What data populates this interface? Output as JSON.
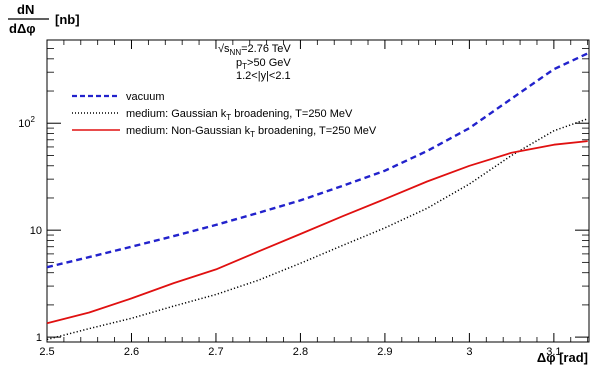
{
  "chart_data": {
    "type": "line",
    "ylabel_num": "dN",
    "ylabel_den": "dΔφ",
    "ylabel_unit": "[nb]",
    "xlabel": "Δφ [rad]",
    "xlim": [
      2.5,
      3.14159
    ],
    "ylim": [
      0.9,
      600
    ],
    "yscale": "log",
    "x_ticks": [
      {
        "value": 2.5,
        "label": "2.5"
      },
      {
        "value": 2.6,
        "label": "2.6"
      },
      {
        "value": 2.7,
        "label": "2.7"
      },
      {
        "value": 2.8,
        "label": "2.8"
      },
      {
        "value": 2.9,
        "label": "2.9"
      },
      {
        "value": 3.0,
        "label": "3"
      },
      {
        "value": 3.1,
        "label": "3.1"
      }
    ],
    "y_ticks": [
      {
        "value": 1,
        "label": "1"
      },
      {
        "value": 10,
        "label": "10"
      },
      {
        "value": 100,
        "label": "10",
        "sup": "2"
      }
    ],
    "annotations": {
      "energy": {
        "pre": "√s",
        "sub": "NN",
        "post": "=2.76 TeV"
      },
      "pt": {
        "pre": "p",
        "sub": "T",
        "post": ">50 GeV"
      },
      "rapidity": "1.2<|y|<2.1"
    },
    "series": [
      {
        "name": "vacuum",
        "legend": {
          "pre": "vacuum",
          "sub": "",
          "post": ""
        },
        "color": "#2222cc",
        "style": "dashed",
        "x": [
          2.5,
          2.55,
          2.6,
          2.65,
          2.7,
          2.75,
          2.8,
          2.85,
          2.9,
          2.95,
          3.0,
          3.05,
          3.1,
          3.14
        ],
        "y": [
          4.5,
          5.6,
          7.0,
          8.8,
          11.2,
          14.5,
          19.0,
          26.0,
          36.0,
          55.0,
          90.0,
          170.0,
          320.0,
          450.0
        ]
      },
      {
        "name": "medium: Gaussian kT broadening, T=250 MeV",
        "legend": {
          "pre": "medium: Gaussian k",
          "sub": "T",
          "post": " broadening, T=250 MeV"
        },
        "color": "#000000",
        "style": "dotted",
        "x": [
          2.5,
          2.55,
          2.6,
          2.65,
          2.7,
          2.75,
          2.8,
          2.85,
          2.9,
          2.95,
          3.0,
          3.05,
          3.1,
          3.14
        ],
        "y": [
          0.95,
          1.2,
          1.5,
          1.95,
          2.5,
          3.4,
          4.9,
          7.2,
          10.5,
          16.0,
          27.0,
          50.0,
          85.0,
          110.0
        ]
      },
      {
        "name": "medium: Non-Gaussian kT broadening, T=250 MeV",
        "legend": {
          "pre": "medium: Non-Gaussian k",
          "sub": "T",
          "post": " broadening, T=250 MeV"
        },
        "color": "#e01010",
        "style": "solid",
        "x": [
          2.5,
          2.55,
          2.6,
          2.65,
          2.7,
          2.75,
          2.8,
          2.85,
          2.9,
          2.95,
          3.0,
          3.05,
          3.1,
          3.14
        ],
        "y": [
          1.35,
          1.7,
          2.3,
          3.2,
          4.3,
          6.3,
          9.2,
          13.5,
          19.5,
          28.5,
          40.0,
          53.0,
          63.0,
          68.0
        ]
      }
    ]
  }
}
